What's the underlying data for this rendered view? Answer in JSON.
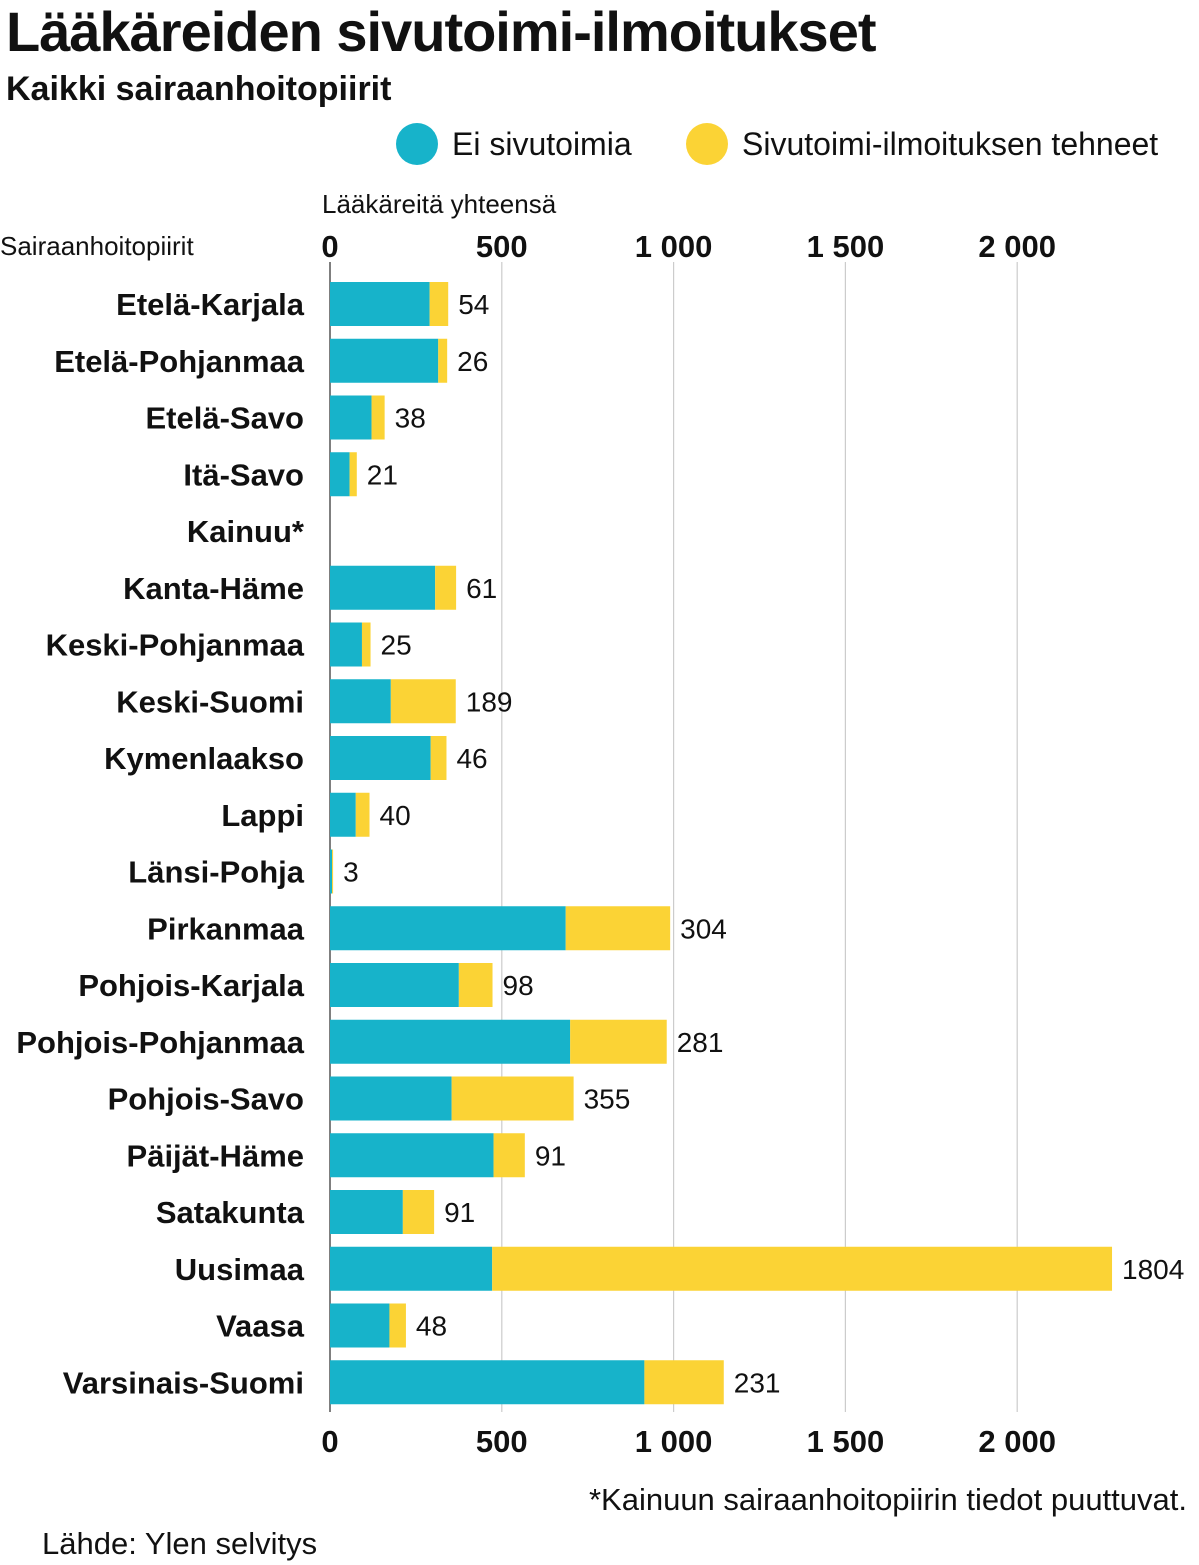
{
  "title": "Lääkäreiden sivutoimi-ilmoitukset",
  "subtitle": "Kaikki sairaanhoitopiirit",
  "legend": [
    {
      "label": "Ei sivutoimia",
      "color": "#17b3ca"
    },
    {
      "label": "Sivutoimi-ilmoituksen tehneet",
      "color": "#fbd335"
    }
  ],
  "footnote": "*Kainuun sairaanhoitopiirin tiedot puuttuvat.",
  "source": "Lähde: Ylen selvitys",
  "chart_data": {
    "type": "bar",
    "orientation": "horizontal",
    "stacked": true,
    "xlabel": "Lääkäreitä yhteensä",
    "ylabel": "Sairaanhoitopiirit",
    "xlim": [
      0,
      2380
    ],
    "xticks": [
      0,
      500,
      1000,
      1500,
      2000
    ],
    "xtick_labels": [
      "0",
      "500",
      "1 000",
      "1 500",
      "2 000"
    ],
    "grid": "vertical",
    "legend_position": "top-right",
    "categories": [
      "Etelä-Karjala",
      "Etelä-Pohjanmaa",
      "Etelä-Savo",
      "Itä-Savo",
      "Kainuu*",
      "Kanta-Häme",
      "Keski-Pohjanmaa",
      "Keski-Suomi",
      "Kymenlaakso",
      "Lappi",
      "Länsi-Pohja",
      "Pirkanmaa",
      "Pohjois-Karjala",
      "Pohjois-Pohjanmaa",
      "Pohjois-Savo",
      "Päijät-Häme",
      "Satakunta",
      "Uusimaa",
      "Vaasa",
      "Varsinais-Suomi"
    ],
    "series": [
      {
        "name": "Ei sivutoimia",
        "color": "#17b3ca",
        "values": [
          290,
          315,
          121,
          57,
          null,
          306,
          93,
          177,
          293,
          75,
          6,
          686,
          375,
          699,
          354,
          476,
          212,
          472,
          173,
          915
        ]
      },
      {
        "name": "Sivutoimi-ilmoituksen tehneet",
        "color": "#fbd335",
        "values": [
          54,
          26,
          38,
          21,
          null,
          61,
          25,
          189,
          46,
          40,
          3,
          304,
          98,
          281,
          355,
          91,
          91,
          1804,
          48,
          231
        ]
      }
    ],
    "data_labels": [
      "54",
      "26",
      "38",
      "21",
      "",
      "61",
      "25",
      "189",
      "46",
      "40",
      "3",
      "304",
      "98",
      "281",
      "355",
      "91",
      "91",
      "1804",
      "48",
      "231"
    ]
  }
}
